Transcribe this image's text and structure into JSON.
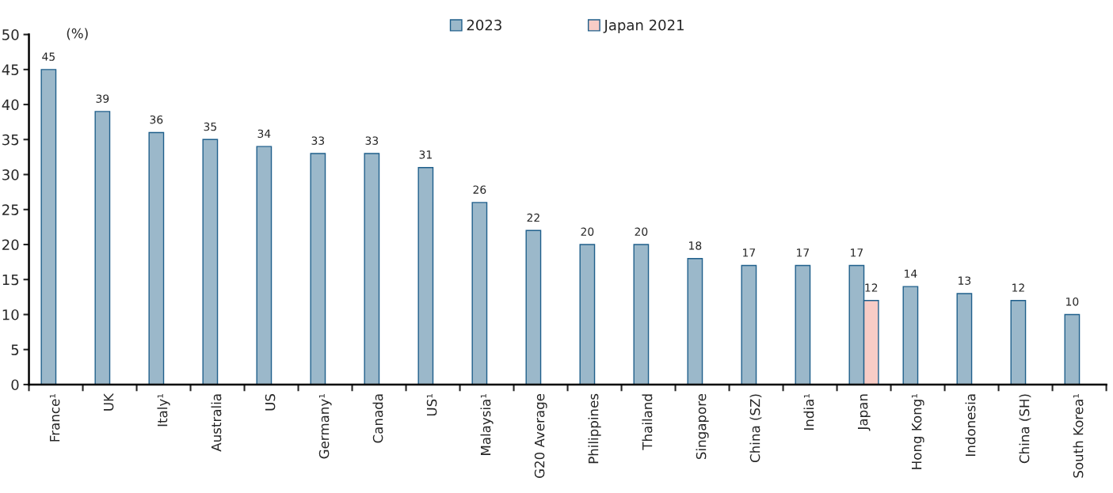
{
  "chart_data": {
    "type": "bar",
    "ylabel": "(%)",
    "categories": [
      "France¹",
      "UK",
      "Italy¹",
      "Australia",
      "US",
      "Germany¹",
      "Canada",
      "US¹",
      "Malaysia¹",
      "G20 Average",
      "Philippines",
      "Thailand",
      "Singapore",
      "China (SZ)",
      "India¹",
      "Japan",
      "Hong Kong¹",
      "Indonesia",
      "China (SH)",
      "South Korea¹"
    ],
    "series": [
      {
        "name": "2023",
        "color": "#9bb8ca",
        "values": [
          45,
          39,
          36,
          35,
          34,
          33,
          33,
          31,
          26,
          22,
          20,
          20,
          18,
          17,
          17,
          17,
          14,
          13,
          12,
          10
        ]
      },
      {
        "name": "Japan 2021",
        "color": "#f8ccc6",
        "values": [
          null,
          null,
          null,
          null,
          null,
          null,
          null,
          null,
          null,
          null,
          null,
          null,
          null,
          null,
          null,
          12,
          null,
          null,
          null,
          null
        ]
      }
    ],
    "ylim": [
      0,
      50
    ],
    "yticks": [
      0,
      5,
      10,
      15,
      20,
      25,
      30,
      35,
      40,
      45,
      50
    ],
    "data_labels": true,
    "grid": false,
    "legend": "top"
  }
}
